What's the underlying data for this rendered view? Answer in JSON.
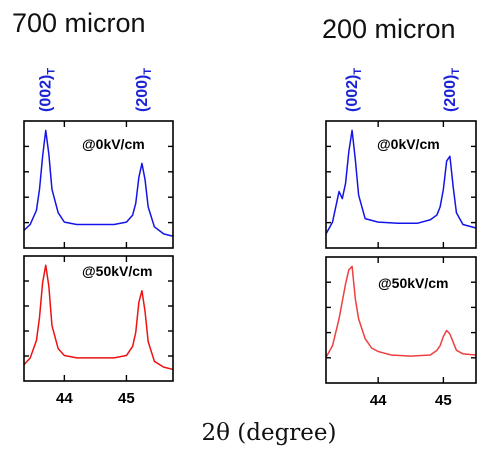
{
  "colors": {
    "field_0": "#1414e6",
    "field_50_left": "#ee1111",
    "field_50_right": "#ef3f3f",
    "peak_label": "#1a23d6"
  },
  "x_axis_label": "2θ (degree)",
  "chart_data": [
    {
      "type": "line",
      "title": "700 micron",
      "xlabel": "2θ (degree)",
      "xlim": [
        43.35,
        45.75
      ],
      "xticks": [
        44,
        45
      ],
      "x_tick_labels": [
        "44",
        "45"
      ],
      "peak_labels": [
        {
          "label": "(002)T",
          "x": 43.7
        },
        {
          "label": "(200)T",
          "x": 45.25
        }
      ],
      "panels": [
        {
          "label": "@0kV/cm",
          "color": "#1414e6",
          "ylim": [
            0,
            1.08
          ],
          "series": [
            {
              "x": [
                43.35,
                43.45,
                43.55,
                43.6,
                43.65,
                43.7,
                43.75,
                43.8,
                43.9,
                44.0,
                44.2,
                44.5,
                44.8,
                45.0,
                45.1,
                45.15,
                45.2,
                45.25,
                45.3,
                45.35,
                45.45,
                45.6,
                45.75
              ],
              "y": [
                0.15,
                0.2,
                0.32,
                0.5,
                0.78,
                1.0,
                0.8,
                0.5,
                0.3,
                0.22,
                0.2,
                0.2,
                0.2,
                0.22,
                0.28,
                0.38,
                0.6,
                0.72,
                0.58,
                0.35,
                0.18,
                0.12,
                0.1
              ]
            }
          ]
        },
        {
          "label": "@50kV/cm",
          "color": "#ee1111",
          "ylim": [
            0,
            1.08
          ],
          "series": [
            {
              "x": [
                43.35,
                43.45,
                43.55,
                43.6,
                43.65,
                43.7,
                43.75,
                43.8,
                43.9,
                44.0,
                44.2,
                44.5,
                44.8,
                45.0,
                45.1,
                45.15,
                45.2,
                45.25,
                45.3,
                45.35,
                45.45,
                45.6,
                45.75
              ],
              "y": [
                0.14,
                0.2,
                0.35,
                0.55,
                0.85,
                1.0,
                0.82,
                0.48,
                0.28,
                0.22,
                0.2,
                0.2,
                0.2,
                0.22,
                0.3,
                0.42,
                0.68,
                0.78,
                0.6,
                0.34,
                0.17,
                0.12,
                0.1
              ]
            }
          ]
        }
      ]
    },
    {
      "type": "line",
      "title": "200 micron",
      "xlabel": "2θ (degree)",
      "xlim": [
        43.2,
        45.5
      ],
      "xticks": [
        44,
        45
      ],
      "x_tick_labels": [
        "44",
        "45"
      ],
      "peak_labels": [
        {
          "label": "(002)T",
          "x": 43.6
        },
        {
          "label": "(200)T",
          "x": 45.1
        }
      ],
      "panels": [
        {
          "label": "@0kV/cm",
          "color": "#1414e6",
          "ylim": [
            0,
            1.08
          ],
          "series": [
            {
              "x": [
                43.2,
                43.3,
                43.35,
                43.4,
                43.45,
                43.5,
                43.55,
                43.6,
                43.65,
                43.7,
                43.8,
                44.0,
                44.3,
                44.6,
                44.8,
                44.9,
                44.95,
                45.0,
                45.05,
                45.1,
                45.15,
                45.2,
                45.3,
                45.5
              ],
              "y": [
                0.12,
                0.22,
                0.35,
                0.48,
                0.42,
                0.55,
                0.82,
                1.0,
                0.75,
                0.45,
                0.25,
                0.22,
                0.21,
                0.21,
                0.24,
                0.28,
                0.35,
                0.5,
                0.74,
                0.78,
                0.52,
                0.3,
                0.2,
                0.17
              ]
            }
          ]
        },
        {
          "label": "@50kV/cm",
          "color": "#ef3f3f",
          "ylim": [
            0,
            1.08
          ],
          "series": [
            {
              "x": [
                43.2,
                43.3,
                43.4,
                43.45,
                43.5,
                43.55,
                43.6,
                43.65,
                43.7,
                43.8,
                43.9,
                44.0,
                44.2,
                44.5,
                44.8,
                44.9,
                44.95,
                45.0,
                45.05,
                45.1,
                45.15,
                45.2,
                45.3,
                45.5
              ],
              "y": [
                0.22,
                0.32,
                0.55,
                0.7,
                0.85,
                0.97,
                1.0,
                0.72,
                0.55,
                0.38,
                0.3,
                0.27,
                0.24,
                0.23,
                0.24,
                0.28,
                0.32,
                0.4,
                0.45,
                0.42,
                0.35,
                0.28,
                0.25,
                0.24
              ]
            }
          ]
        }
      ]
    }
  ]
}
